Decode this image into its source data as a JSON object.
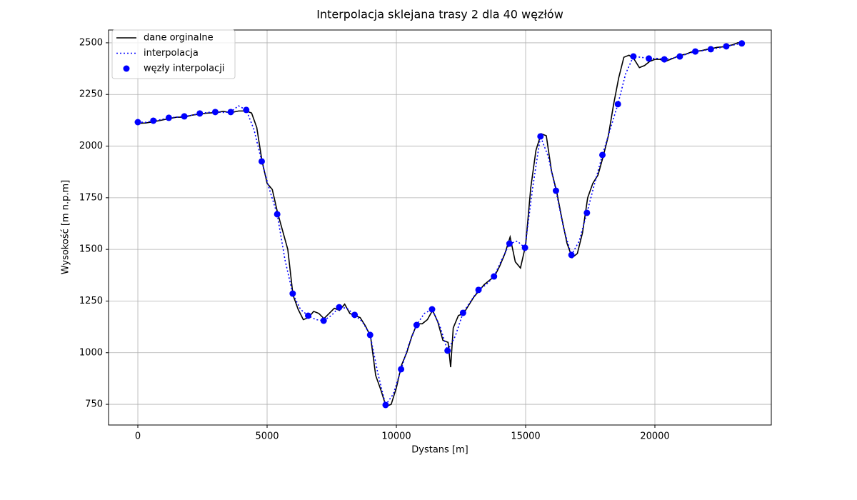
{
  "chart_data": {
    "type": "line",
    "title": "Interpolacja sklejana trasy 2 dla 40 węzłów",
    "xlabel": "Dystans [m]",
    "ylabel": "Wysokość [m n.p.m]",
    "xlim": [
      -1133,
      24503
    ],
    "ylim": [
      650,
      2562
    ],
    "xticks": [
      0,
      5000,
      10000,
      15000,
      20000
    ],
    "yticks": [
      750,
      1000,
      1250,
      1500,
      1750,
      2000,
      2250,
      2500
    ],
    "grid": true,
    "legend": "upper-left",
    "series": [
      {
        "name": "dane orginalne",
        "type": "line",
        "linestyle": "solid",
        "color": "#000000",
        "x": [
          0,
          300,
          600,
          900,
          1200,
          1500,
          1800,
          2100,
          2400,
          2700,
          3000,
          3300,
          3600,
          3900,
          4200,
          4400,
          4600,
          4800,
          5000,
          5200,
          5400,
          5600,
          5800,
          6000,
          6200,
          6400,
          6600,
          6800,
          7000,
          7200,
          7400,
          7600,
          7800,
          8000,
          8200,
          8400,
          8600,
          8800,
          9000,
          9200,
          9400,
          9600,
          9800,
          10000,
          10200,
          10400,
          10600,
          10800,
          11000,
          11200,
          11400,
          11600,
          11800,
          12000,
          12100,
          12200,
          12400,
          12600,
          12800,
          13000,
          13200,
          13400,
          13600,
          13800,
          14000,
          14200,
          14400,
          14600,
          14800,
          15000,
          15200,
          15400,
          15600,
          15800,
          16000,
          16200,
          16400,
          16600,
          16800,
          17000,
          17200,
          17400,
          17600,
          17800,
          18000,
          18200,
          18400,
          18600,
          18800,
          19000,
          19200,
          19400,
          19600,
          19800,
          20000,
          20200,
          20400,
          20600,
          20800,
          21000,
          21200,
          21400,
          21600,
          21800,
          22000,
          22200,
          22400,
          22600,
          22800,
          23000,
          23200,
          23350
        ],
        "values": [
          2110,
          2112,
          2118,
          2125,
          2133,
          2140,
          2140,
          2150,
          2155,
          2160,
          2162,
          2168,
          2162,
          2170,
          2170,
          2160,
          2090,
          1930,
          1820,
          1790,
          1680,
          1590,
          1500,
          1280,
          1210,
          1160,
          1170,
          1200,
          1190,
          1165,
          1190,
          1215,
          1205,
          1235,
          1190,
          1180,
          1170,
          1130,
          1080,
          890,
          820,
          740,
          750,
          830,
          940,
          1000,
          1080,
          1140,
          1140,
          1160,
          1205,
          1150,
          1060,
          1050,
          930,
          1120,
          1180,
          1190,
          1230,
          1270,
          1300,
          1330,
          1350,
          1370,
          1420,
          1480,
          1560,
          1440,
          1410,
          1520,
          1800,
          1980,
          2060,
          2050,
          1880,
          1780,
          1650,
          1530,
          1460,
          1480,
          1580,
          1750,
          1820,
          1860,
          1950,
          2050,
          2200,
          2330,
          2430,
          2440,
          2420,
          2380,
          2390,
          2410,
          2420,
          2420,
          2410,
          2420,
          2430,
          2440,
          2445,
          2455,
          2460,
          2462,
          2468,
          2472,
          2478,
          2480,
          2485,
          2490,
          2500,
          2500
        ]
      },
      {
        "name": "interpolacja",
        "type": "line",
        "linestyle": "dotted",
        "color": "#0000ff",
        "x": [
          0,
          299.5,
          599,
          898.5,
          1198,
          1497.5,
          1797,
          2096.5,
          2396,
          2695.5,
          2995,
          3294.5,
          3594,
          3893.5,
          4193,
          4492.5,
          4792,
          5091.5,
          5391,
          5690.5,
          5990,
          6289.5,
          6589,
          6888.5,
          7188,
          7487.5,
          7787,
          8086.5,
          8386,
          8685.5,
          8985,
          9284.5,
          9584,
          9883.5,
          10183,
          10482.5,
          10782,
          11081.5,
          11381,
          11680.5,
          11980,
          12279.5,
          12579,
          12878.5,
          13178,
          13477.5,
          13777,
          14076.5,
          14376,
          14675.5,
          14975,
          15274.5,
          15574,
          15873.5,
          16173,
          16472.5,
          16772,
          17071.5,
          17371,
          17670.5,
          17970,
          18269.5,
          18569,
          18868.5,
          19168,
          19467.5,
          19767,
          20066.5,
          20366,
          20665.5,
          20965,
          21264.5,
          21564,
          21863.5,
          22163,
          22462.5,
          22762,
          23061.5,
          23361
        ],
        "values": [
          2116,
          2115,
          2123,
          2128,
          2137,
          2140,
          2144,
          2150,
          2158,
          2163,
          2165,
          2163,
          2165,
          2195,
          2175,
          2080,
          1926,
          1790,
          1670,
          1450,
          1286,
          1210,
          1179,
          1160,
          1155,
          1180,
          1220,
          1215,
          1183,
          1150,
          1086,
          900,
          747,
          800,
          920,
          1040,
          1134,
          1190,
          1210,
          1130,
          1010,
          1080,
          1193,
          1250,
          1304,
          1330,
          1369,
          1450,
          1528,
          1540,
          1508,
          1800,
          2047,
          1950,
          1784,
          1600,
          1473,
          1540,
          1677,
          1820,
          1957,
          2080,
          2203,
          2350,
          2434,
          2430,
          2424,
          2425,
          2420,
          2425,
          2434,
          2447,
          2458,
          2462,
          2469,
          2475,
          2483,
          2490,
          2497
        ]
      },
      {
        "name": "węzły interpolacji",
        "type": "scatter",
        "color": "#0000ff",
        "x": [
          0,
          599,
          1198,
          1797,
          2396,
          2995,
          3594,
          4193,
          4792,
          5391,
          5990,
          6589,
          7188,
          7787,
          8386,
          8985,
          9584,
          10183,
          10782,
          11381,
          11980,
          12579,
          13178,
          13777,
          14376,
          14975,
          15574,
          16173,
          16772,
          17371,
          17970,
          18569,
          19168,
          19767,
          20366,
          20965,
          21564,
          22163,
          22762,
          23361
        ],
        "values": [
          2116,
          2123,
          2137,
          2144,
          2158,
          2165,
          2165,
          2175,
          1926,
          1670,
          1286,
          1179,
          1155,
          1220,
          1183,
          1086,
          747,
          920,
          1134,
          1210,
          1010,
          1193,
          1304,
          1369,
          1528,
          1508,
          2047,
          1784,
          1473,
          1677,
          1957,
          2203,
          2434,
          2424,
          2420,
          2434,
          2458,
          2469,
          2483,
          2497
        ]
      }
    ]
  }
}
